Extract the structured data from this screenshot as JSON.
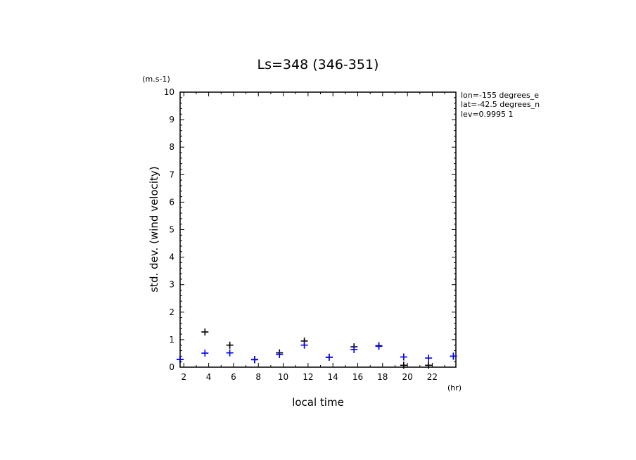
{
  "chart_data": {
    "type": "scatter",
    "title": "Ls=348 (346-351)",
    "xlabel": "local time",
    "ylabel": "std. dev. (wind velocity)",
    "x_unit": "(hr)",
    "y_unit": "(m.s-1)",
    "xlim": [
      1.7,
      23.9
    ],
    "ylim": [
      0,
      10
    ],
    "x_ticks": [
      2,
      4,
      6,
      8,
      10,
      12,
      14,
      16,
      18,
      20,
      22
    ],
    "y_ticks": [
      0,
      1,
      2,
      3,
      4,
      5,
      6,
      7,
      8,
      9,
      10
    ],
    "info": [
      "lon=-155 degrees_e",
      "lat=-42.5 degrees_n",
      "lev=0.9995 1"
    ],
    "series": [
      {
        "color": "#000000",
        "x": [
          1.7,
          3.7,
          5.7,
          7.7,
          9.7,
          11.7,
          13.7,
          15.7,
          17.7,
          19.7,
          21.7,
          23.7
        ],
        "y": [
          0.28,
          1.28,
          0.8,
          0.28,
          0.52,
          0.95,
          0.36,
          0.74,
          0.78,
          0.07,
          0.07,
          0.4
        ]
      },
      {
        "color": "#0000ff",
        "x": [
          1.7,
          3.7,
          5.7,
          7.7,
          9.7,
          11.7,
          13.7,
          15.7,
          17.7,
          19.7,
          21.7,
          23.7
        ],
        "y": [
          0.28,
          0.51,
          0.52,
          0.27,
          0.46,
          0.8,
          0.36,
          0.64,
          0.76,
          0.37,
          0.33,
          0.4
        ]
      }
    ]
  }
}
